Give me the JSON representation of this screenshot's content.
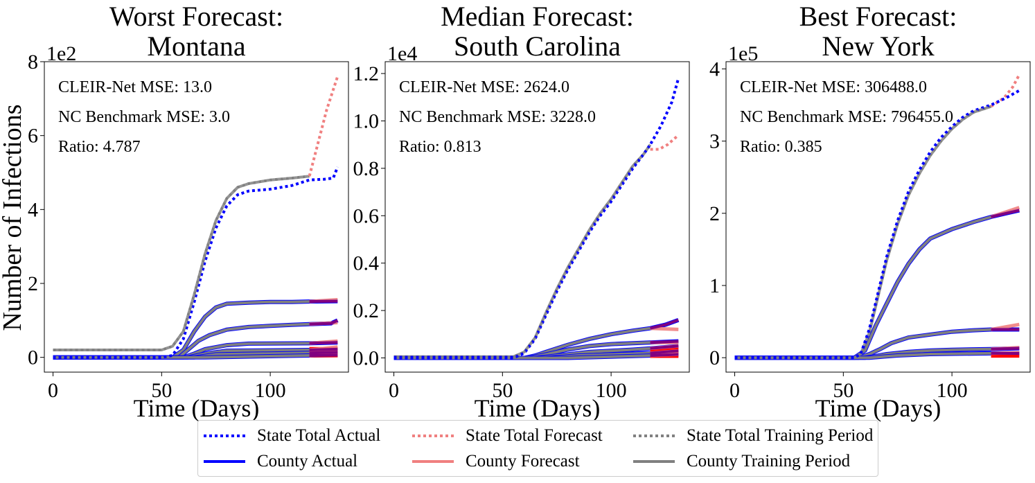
{
  "figure": {
    "ylabel": "Number of Infections",
    "legend": [
      {
        "label": "State Total Actual",
        "color": "#0000ff",
        "style": "dotted"
      },
      {
        "label": "State Total Forecast",
        "color": "#f08080",
        "style": "dotted"
      },
      {
        "label": "State Total Training Period",
        "color": "#808080",
        "style": "dotted"
      },
      {
        "label": "County Actual",
        "color": "#0000ff",
        "style": "solid"
      },
      {
        "label": "County Forecast",
        "color": "#f08080",
        "style": "solid"
      },
      {
        "label": "County Training Period",
        "color": "#808080",
        "style": "solid"
      }
    ]
  },
  "chart_data": [
    {
      "type": "line",
      "title_line1": "Worst Forecast:",
      "title_line2": "Montana",
      "xlabel": "Time (Days)",
      "ylabel": "Number of Infections",
      "offset_text": "1e2",
      "xlim": [
        -4,
        136
      ],
      "ylim": [
        -0.4,
        8.0
      ],
      "xticks": [
        0,
        50,
        100
      ],
      "yticks": [
        0,
        2,
        4,
        6,
        8
      ],
      "ytick_labels": [
        "0",
        "2",
        "4",
        "6",
        "8"
      ],
      "annotations": [
        "CLEIR-Net MSE: 13.0",
        "NC Benchmark MSE: 3.0",
        "Ratio: 4.787"
      ],
      "forecast_start": 118,
      "end_day": 131,
      "state_actual": [
        [
          0,
          0
        ],
        [
          50,
          0
        ],
        [
          55,
          0.05
        ],
        [
          60,
          0.5
        ],
        [
          65,
          1.5
        ],
        [
          70,
          2.6
        ],
        [
          75,
          3.5
        ],
        [
          80,
          4.1
        ],
        [
          85,
          4.4
        ],
        [
          90,
          4.5
        ],
        [
          100,
          4.55
        ],
        [
          110,
          4.65
        ],
        [
          118,
          4.8
        ],
        [
          125,
          4.82
        ],
        [
          129,
          4.85
        ],
        [
          131,
          5.15
        ]
      ],
      "state_training": [
        [
          0,
          0.2
        ],
        [
          50,
          0.2
        ],
        [
          55,
          0.3
        ],
        [
          60,
          0.7
        ],
        [
          65,
          1.7
        ],
        [
          70,
          2.8
        ],
        [
          75,
          3.7
        ],
        [
          80,
          4.3
        ],
        [
          85,
          4.6
        ],
        [
          90,
          4.7
        ],
        [
          100,
          4.8
        ],
        [
          110,
          4.85
        ],
        [
          118,
          4.9
        ]
      ],
      "state_forecast": [
        [
          118,
          4.9
        ],
        [
          122,
          5.8
        ],
        [
          126,
          6.7
        ],
        [
          131,
          7.6
        ]
      ],
      "county_actual": [
        [
          [
            0,
            0
          ],
          [
            55,
            0
          ],
          [
            60,
            0.2
          ],
          [
            65,
            0.7
          ],
          [
            70,
            1.1
          ],
          [
            75,
            1.35
          ],
          [
            80,
            1.45
          ],
          [
            90,
            1.48
          ],
          [
            100,
            1.5
          ],
          [
            110,
            1.5
          ],
          [
            118,
            1.51
          ],
          [
            131,
            1.52
          ]
        ],
        [
          [
            0,
            0
          ],
          [
            58,
            0
          ],
          [
            62,
            0.2
          ],
          [
            67,
            0.45
          ],
          [
            72,
            0.6
          ],
          [
            80,
            0.75
          ],
          [
            90,
            0.82
          ],
          [
            100,
            0.85
          ],
          [
            110,
            0.88
          ],
          [
            118,
            0.9
          ],
          [
            128,
            0.92
          ],
          [
            131,
            1.0
          ]
        ],
        [
          [
            0,
            0
          ],
          [
            60,
            0
          ],
          [
            65,
            0.1
          ],
          [
            70,
            0.22
          ],
          [
            80,
            0.33
          ],
          [
            90,
            0.37
          ],
          [
            118,
            0.38
          ],
          [
            131,
            0.4
          ]
        ],
        [
          [
            0,
            0
          ],
          [
            62,
            0
          ],
          [
            70,
            0.1
          ],
          [
            80,
            0.18
          ],
          [
            118,
            0.2
          ],
          [
            131,
            0.22
          ]
        ],
        [
          [
            0,
            0
          ],
          [
            65,
            0
          ],
          [
            75,
            0.08
          ],
          [
            118,
            0.12
          ],
          [
            131,
            0.14
          ]
        ],
        [
          [
            0,
            0
          ],
          [
            70,
            0
          ],
          [
            118,
            0.05
          ],
          [
            131,
            0.06
          ]
        ]
      ],
      "county_forecast": [
        [
          [
            118,
            1.51
          ],
          [
            131,
            1.56
          ]
        ],
        [
          [
            118,
            0.9
          ],
          [
            131,
            0.94
          ]
        ],
        [
          [
            118,
            0.38
          ],
          [
            131,
            0.44
          ]
        ],
        [
          [
            118,
            0.2
          ],
          [
            131,
            0.28
          ]
        ],
        [
          [
            118,
            0.12
          ],
          [
            131,
            0.2
          ]
        ],
        [
          [
            118,
            0.05
          ],
          [
            131,
            0.1
          ]
        ]
      ],
      "forecast_band": [
        0,
        0.28
      ]
    },
    {
      "type": "line",
      "title_line1": "Median Forecast:",
      "title_line2": "South Carolina",
      "xlabel": "Time (Days)",
      "ylabel": "",
      "offset_text": "1e4",
      "xlim": [
        -4,
        136
      ],
      "ylim": [
        -0.06,
        1.25
      ],
      "xticks": [
        0,
        50,
        100
      ],
      "yticks": [
        0,
        0.2,
        0.4,
        0.6,
        0.8,
        1.0,
        1.2
      ],
      "ytick_labels": [
        "0.0",
        "0.2",
        "0.4",
        "0.6",
        "0.8",
        "1.0",
        "1.2"
      ],
      "annotations": [
        "CLEIR-Net MSE: 2624.0",
        "NC Benchmark MSE: 3228.0",
        "Ratio: 0.813"
      ],
      "forecast_start": 118,
      "end_day": 131,
      "state_actual": [
        [
          0,
          0
        ],
        [
          55,
          0
        ],
        [
          60,
          0.02
        ],
        [
          65,
          0.08
        ],
        [
          70,
          0.18
        ],
        [
          75,
          0.28
        ],
        [
          80,
          0.37
        ],
        [
          85,
          0.45
        ],
        [
          90,
          0.53
        ],
        [
          95,
          0.6
        ],
        [
          100,
          0.66
        ],
        [
          105,
          0.73
        ],
        [
          110,
          0.8
        ],
        [
          115,
          0.86
        ],
        [
          118,
          0.9
        ],
        [
          123,
          0.98
        ],
        [
          128,
          1.08
        ],
        [
          131,
          1.18
        ]
      ],
      "state_training": [
        [
          0,
          0.005
        ],
        [
          55,
          0.005
        ],
        [
          60,
          0.025
        ],
        [
          65,
          0.085
        ],
        [
          70,
          0.19
        ],
        [
          75,
          0.29
        ],
        [
          80,
          0.38
        ],
        [
          85,
          0.46
        ],
        [
          90,
          0.54
        ],
        [
          95,
          0.61
        ],
        [
          100,
          0.67
        ],
        [
          105,
          0.74
        ],
        [
          110,
          0.81
        ],
        [
          115,
          0.86
        ],
        [
          118,
          0.9
        ]
      ],
      "state_forecast": [
        [
          118,
          0.88
        ],
        [
          122,
          0.88
        ],
        [
          126,
          0.9
        ],
        [
          131,
          0.94
        ]
      ],
      "county_actual": [
        [
          [
            0,
            0
          ],
          [
            60,
            0
          ],
          [
            65,
            0.01
          ],
          [
            70,
            0.025
          ],
          [
            80,
            0.055
          ],
          [
            90,
            0.08
          ],
          [
            100,
            0.1
          ],
          [
            110,
            0.115
          ],
          [
            118,
            0.125
          ],
          [
            125,
            0.14
          ],
          [
            131,
            0.16
          ]
        ],
        [
          [
            0,
            0
          ],
          [
            62,
            0
          ],
          [
            70,
            0.015
          ],
          [
            80,
            0.035
          ],
          [
            90,
            0.05
          ],
          [
            100,
            0.058
          ],
          [
            110,
            0.062
          ],
          [
            118,
            0.065
          ],
          [
            131,
            0.07
          ]
        ],
        [
          [
            0,
            0
          ],
          [
            65,
            0
          ],
          [
            75,
            0.01
          ],
          [
            90,
            0.025
          ],
          [
            110,
            0.035
          ],
          [
            118,
            0.04
          ],
          [
            131,
            0.05
          ]
        ],
        [
          [
            0,
            0
          ],
          [
            70,
            0
          ],
          [
            85,
            0.01
          ],
          [
            118,
            0.02
          ],
          [
            131,
            0.03
          ]
        ],
        [
          [
            0,
            0
          ],
          [
            80,
            0
          ],
          [
            118,
            0.01
          ],
          [
            131,
            0.015
          ]
        ]
      ],
      "county_forecast": [
        [
          [
            118,
            0.125
          ],
          [
            131,
            0.12
          ]
        ],
        [
          [
            118,
            0.065
          ],
          [
            131,
            0.065
          ]
        ],
        [
          [
            118,
            0.04
          ],
          [
            131,
            0.05
          ]
        ],
        [
          [
            118,
            0.02
          ],
          [
            131,
            0.03
          ]
        ],
        [
          [
            118,
            0.01
          ],
          [
            131,
            0.015
          ]
        ]
      ],
      "forecast_band": [
        0,
        0.045
      ]
    },
    {
      "type": "line",
      "title_line1": "Best Forecast:",
      "title_line2": "New York",
      "xlabel": "Time (Days)",
      "ylabel": "",
      "offset_text": "1e5",
      "xlim": [
        -4,
        136
      ],
      "ylim": [
        -0.2,
        4.1
      ],
      "xticks": [
        0,
        50,
        100
      ],
      "yticks": [
        0,
        1,
        2,
        3,
        4
      ],
      "ytick_labels": [
        "0",
        "1",
        "2",
        "3",
        "4"
      ],
      "annotations": [
        "CLEIR-Net MSE: 306488.0",
        "NC Benchmark MSE: 796455.0",
        "Ratio: 0.385"
      ],
      "forecast_start": 118,
      "end_day": 131,
      "state_actual": [
        [
          0,
          0
        ],
        [
          55,
          0
        ],
        [
          58,
          0.05
        ],
        [
          62,
          0.4
        ],
        [
          66,
          0.9
        ],
        [
          70,
          1.4
        ],
        [
          75,
          1.9
        ],
        [
          80,
          2.3
        ],
        [
          85,
          2.6
        ],
        [
          90,
          2.85
        ],
        [
          95,
          3.05
        ],
        [
          100,
          3.2
        ],
        [
          105,
          3.33
        ],
        [
          110,
          3.42
        ],
        [
          118,
          3.5
        ],
        [
          125,
          3.6
        ],
        [
          131,
          3.7
        ]
      ],
      "state_training": [
        [
          0,
          0
        ],
        [
          55,
          0
        ],
        [
          58,
          0.05
        ],
        [
          62,
          0.35
        ],
        [
          66,
          0.85
        ],
        [
          70,
          1.35
        ],
        [
          75,
          1.85
        ],
        [
          80,
          2.25
        ],
        [
          85,
          2.55
        ],
        [
          90,
          2.8
        ],
        [
          95,
          3.0
        ],
        [
          100,
          3.17
        ],
        [
          105,
          3.3
        ],
        [
          110,
          3.4
        ],
        [
          118,
          3.48
        ]
      ],
      "state_forecast": [
        [
          118,
          3.48
        ],
        [
          124,
          3.6
        ],
        [
          128,
          3.75
        ],
        [
          131,
          3.92
        ]
      ],
      "county_actual": [
        [
          [
            0,
            0
          ],
          [
            55,
            0
          ],
          [
            60,
            0.1
          ],
          [
            65,
            0.45
          ],
          [
            70,
            0.75
          ],
          [
            75,
            1.05
          ],
          [
            80,
            1.3
          ],
          [
            85,
            1.5
          ],
          [
            90,
            1.65
          ],
          [
            100,
            1.78
          ],
          [
            110,
            1.88
          ],
          [
            118,
            1.95
          ],
          [
            125,
            2.0
          ],
          [
            131,
            2.04
          ]
        ],
        [
          [
            0,
            0
          ],
          [
            57,
            0
          ],
          [
            62,
            0.05
          ],
          [
            67,
            0.12
          ],
          [
            72,
            0.2
          ],
          [
            80,
            0.28
          ],
          [
            90,
            0.32
          ],
          [
            100,
            0.36
          ],
          [
            110,
            0.38
          ],
          [
            118,
            0.39
          ],
          [
            131,
            0.39
          ]
        ],
        [
          [
            0,
            0
          ],
          [
            60,
            0
          ],
          [
            70,
            0.05
          ],
          [
            80,
            0.08
          ],
          [
            90,
            0.1
          ],
          [
            100,
            0.11
          ],
          [
            118,
            0.12
          ],
          [
            131,
            0.13
          ]
        ],
        [
          [
            0,
            0
          ],
          [
            62,
            0
          ],
          [
            75,
            0.03
          ],
          [
            90,
            0.05
          ],
          [
            118,
            0.06
          ],
          [
            131,
            0.06
          ]
        ]
      ],
      "county_forecast": [
        [
          [
            118,
            1.95
          ],
          [
            131,
            2.08
          ]
        ],
        [
          [
            118,
            0.39
          ],
          [
            131,
            0.46
          ]
        ],
        [
          [
            118,
            0.12
          ],
          [
            131,
            0.14
          ]
        ],
        [
          [
            118,
            0.06
          ],
          [
            131,
            0.07
          ]
        ]
      ],
      "forecast_band": [
        0,
        0.04
      ]
    }
  ]
}
